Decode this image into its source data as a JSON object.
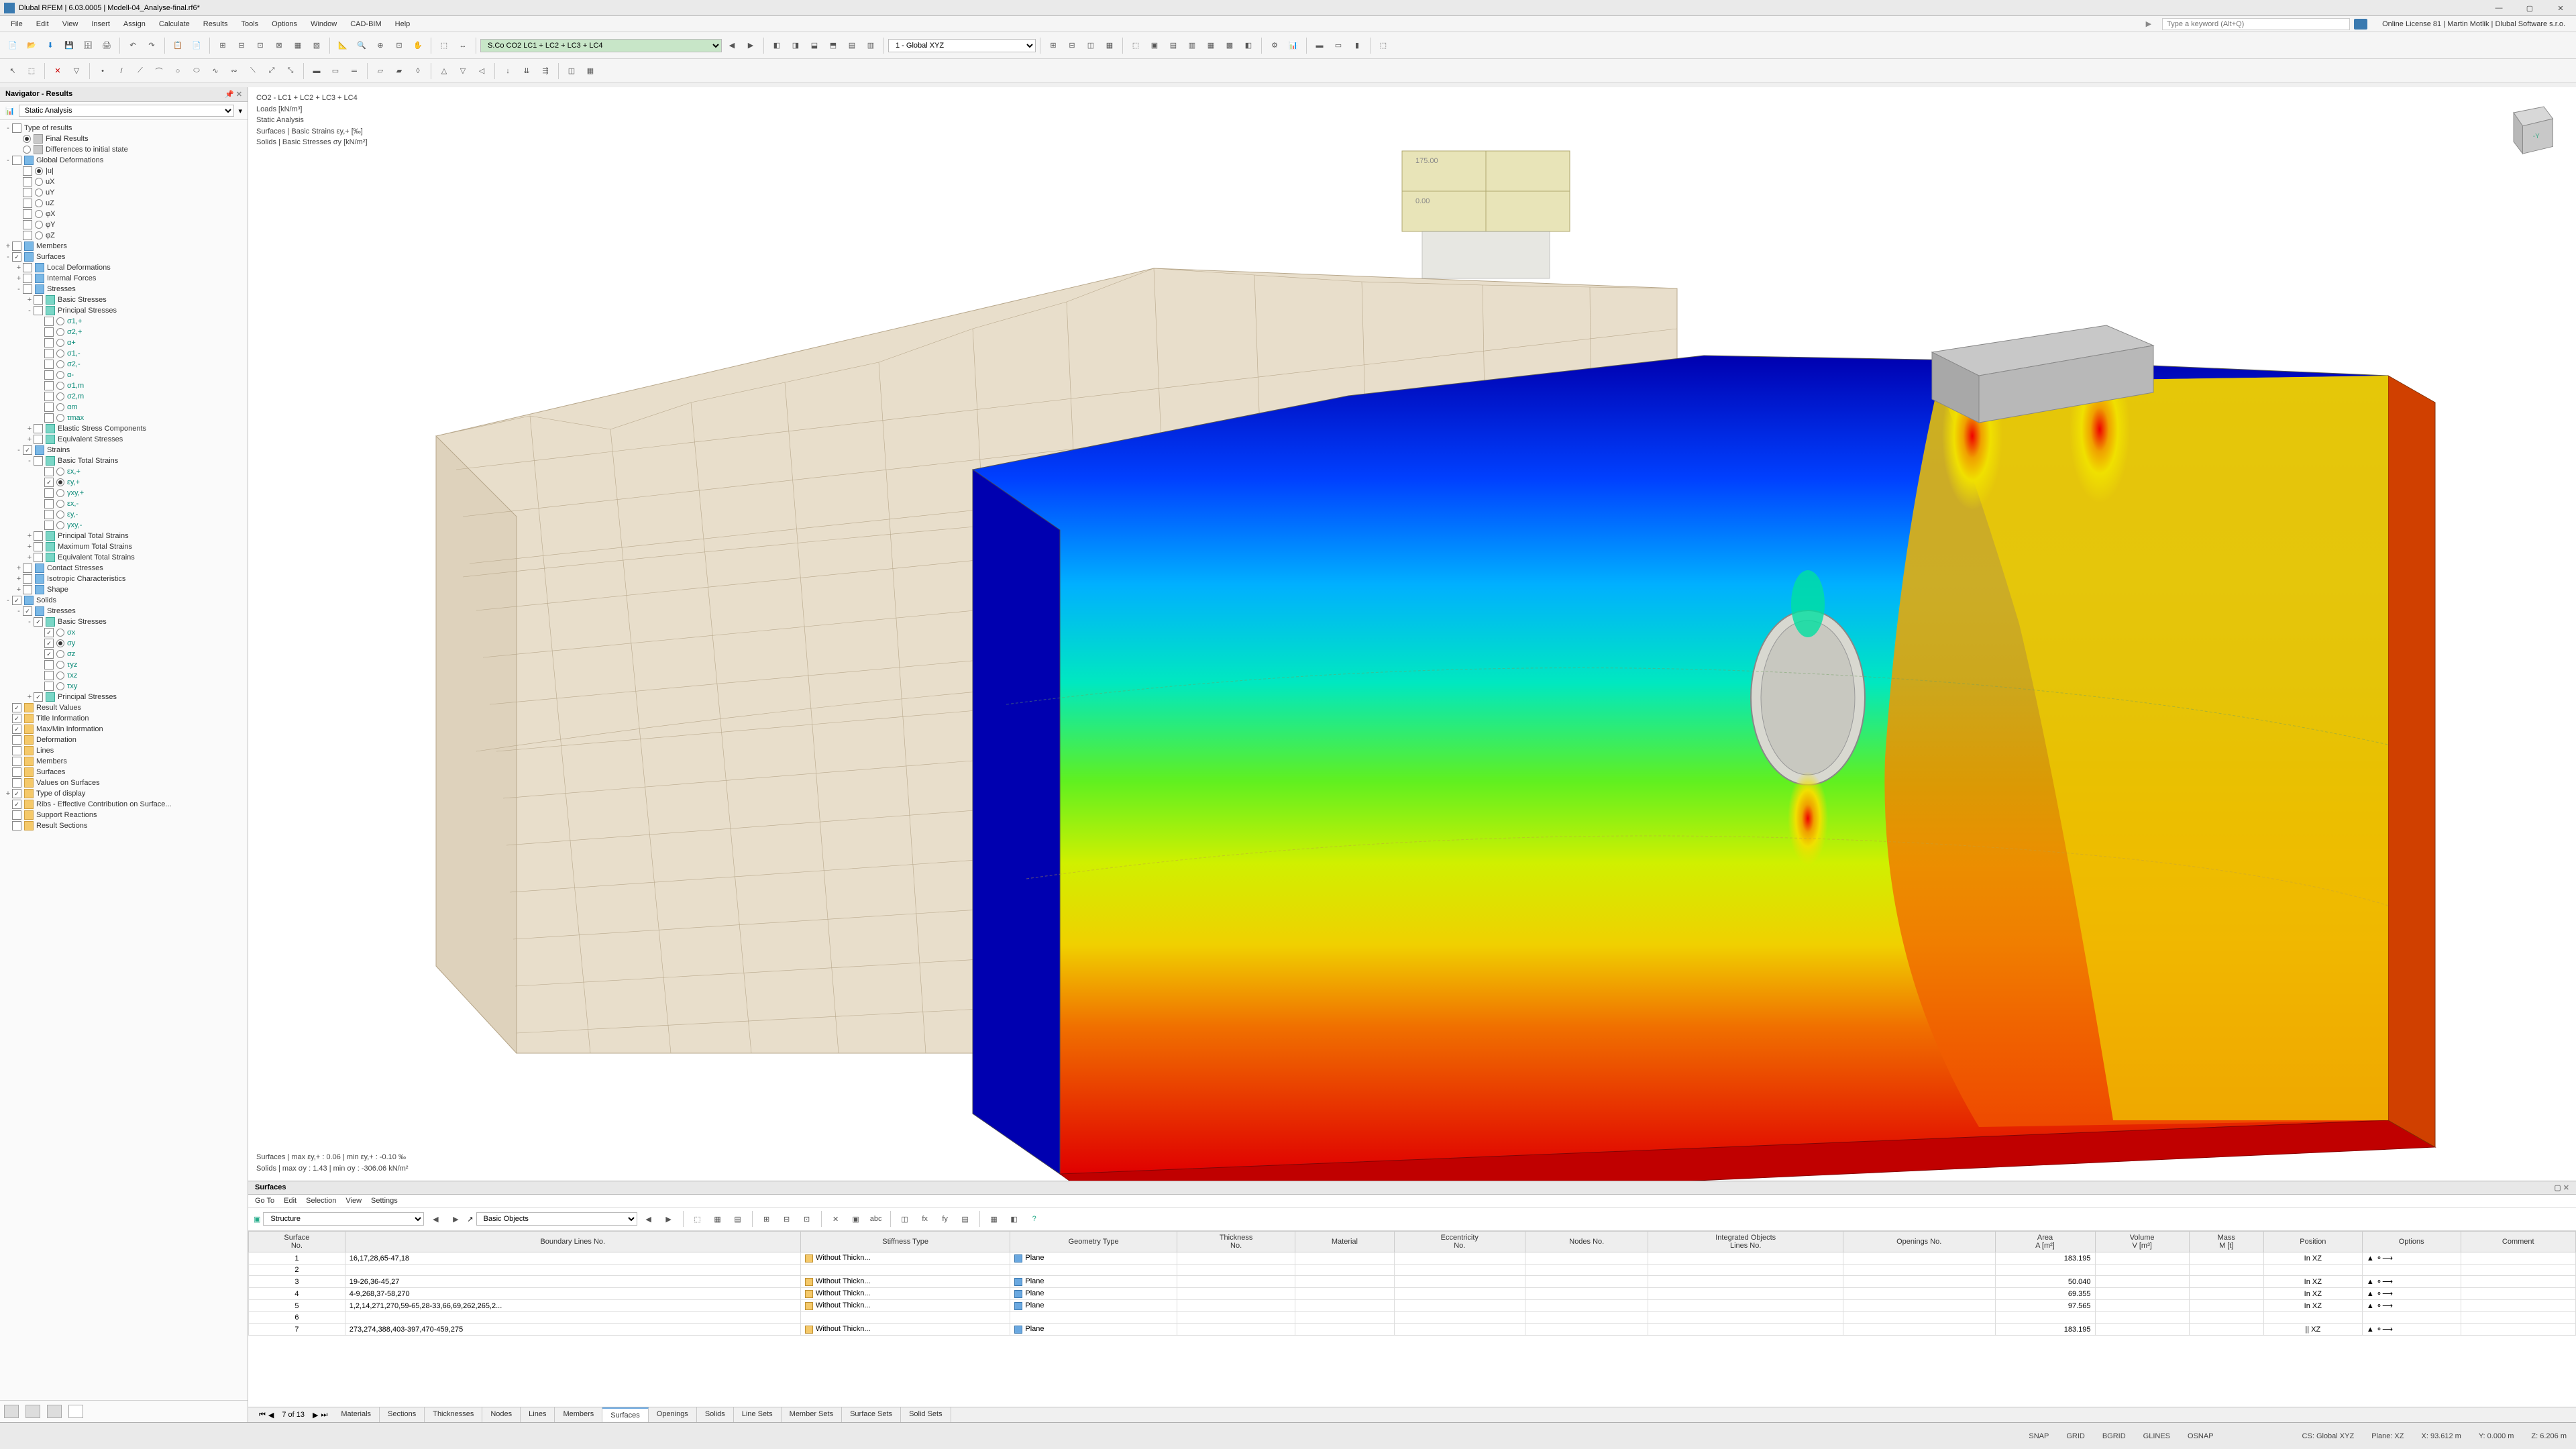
{
  "app": {
    "title": "Dlubal RFEM | 6.03.0005 | Modell-04_Analyse-final.rf6*"
  },
  "menu": [
    "File",
    "Edit",
    "View",
    "Insert",
    "Assign",
    "Calculate",
    "Results",
    "Tools",
    "Options",
    "Window",
    "CAD-BIM",
    "Help"
  ],
  "search_placeholder": "Type a keyword (Alt+Q)",
  "license": "Online License 81 | Martin Motlik | Dlubal Software s.r.o.",
  "toolbar2": {
    "load_label": "S.Co  CO2    LC1 + LC2 + LC3 + LC4",
    "coord_label": "1 - Global XYZ"
  },
  "navigator": {
    "title": "Navigator - Results",
    "analysis_dd": "Static Analysis"
  },
  "tree": [
    {
      "ind": 0,
      "exp": "-",
      "chk": "",
      "ico": "",
      "lbl": "Type of results",
      "cls": ""
    },
    {
      "ind": 1,
      "rad": "sel",
      "ico": "ico-gray",
      "lbl": "Final Results"
    },
    {
      "ind": 1,
      "rad": "",
      "ico": "ico-gray",
      "lbl": "Differences to initial state"
    },
    {
      "ind": 0,
      "exp": "-",
      "chk": "",
      "ico": "ico-blue",
      "lbl": "Global Deformations"
    },
    {
      "ind": 1,
      "rad": "sel",
      "chk": "",
      "lbl": "|u|"
    },
    {
      "ind": 1,
      "rad": "",
      "chk": "",
      "lbl": "uX"
    },
    {
      "ind": 1,
      "rad": "",
      "chk": "",
      "lbl": "uY"
    },
    {
      "ind": 1,
      "rad": "",
      "chk": "",
      "lbl": "uZ"
    },
    {
      "ind": 1,
      "rad": "",
      "chk": "",
      "lbl": "φX"
    },
    {
      "ind": 1,
      "rad": "",
      "chk": "",
      "lbl": "φY"
    },
    {
      "ind": 1,
      "rad": "",
      "chk": "",
      "lbl": "φZ"
    },
    {
      "ind": 0,
      "exp": "+",
      "chk": "",
      "ico": "ico-blue",
      "lbl": "Members"
    },
    {
      "ind": 0,
      "exp": "-",
      "chk": "checked",
      "ico": "ico-blue",
      "lbl": "Surfaces"
    },
    {
      "ind": 1,
      "exp": "+",
      "chk": "",
      "ico": "ico-blue",
      "lbl": "Local Deformations"
    },
    {
      "ind": 1,
      "exp": "+",
      "chk": "",
      "ico": "ico-blue",
      "lbl": "Internal Forces"
    },
    {
      "ind": 1,
      "exp": "-",
      "chk": "",
      "ico": "ico-blue",
      "lbl": "Stresses"
    },
    {
      "ind": 2,
      "exp": "+",
      "chk": "",
      "ico": "ico-teal",
      "lbl": "Basic Stresses"
    },
    {
      "ind": 2,
      "exp": "-",
      "chk": "",
      "ico": "ico-teal",
      "lbl": "Principal Stresses"
    },
    {
      "ind": 3,
      "rad": "",
      "chk": "",
      "lbl": "σ1,+",
      "cls": "lbl-teal"
    },
    {
      "ind": 3,
      "rad": "",
      "chk": "",
      "lbl": "σ2,+",
      "cls": "lbl-teal"
    },
    {
      "ind": 3,
      "rad": "",
      "chk": "",
      "lbl": "α+",
      "cls": "lbl-teal"
    },
    {
      "ind": 3,
      "rad": "",
      "chk": "",
      "lbl": "σ1,-",
      "cls": "lbl-teal"
    },
    {
      "ind": 3,
      "rad": "",
      "chk": "",
      "lbl": "σ2,-",
      "cls": "lbl-teal"
    },
    {
      "ind": 3,
      "rad": "",
      "chk": "",
      "lbl": "α-",
      "cls": "lbl-teal"
    },
    {
      "ind": 3,
      "rad": "",
      "chk": "",
      "lbl": "σ1,m",
      "cls": "lbl-teal"
    },
    {
      "ind": 3,
      "rad": "",
      "chk": "",
      "lbl": "σ2,m",
      "cls": "lbl-teal"
    },
    {
      "ind": 3,
      "rad": "",
      "chk": "",
      "lbl": "αm",
      "cls": "lbl-teal"
    },
    {
      "ind": 3,
      "rad": "",
      "chk": "",
      "lbl": "τmax",
      "cls": "lbl-teal"
    },
    {
      "ind": 2,
      "exp": "+",
      "chk": "",
      "ico": "ico-teal",
      "lbl": "Elastic Stress Components"
    },
    {
      "ind": 2,
      "exp": "+",
      "chk": "",
      "ico": "ico-teal",
      "lbl": "Equivalent Stresses"
    },
    {
      "ind": 1,
      "exp": "-",
      "chk": "checked",
      "ico": "ico-blue",
      "lbl": "Strains"
    },
    {
      "ind": 2,
      "exp": "-",
      "chk": "",
      "ico": "ico-teal",
      "lbl": "Basic Total Strains"
    },
    {
      "ind": 3,
      "rad": "",
      "chk": "",
      "lbl": "εx,+",
      "cls": "lbl-teal"
    },
    {
      "ind": 3,
      "rad": "sel",
      "chk": "checked",
      "lbl": "εy,+",
      "cls": "lbl-teal"
    },
    {
      "ind": 3,
      "rad": "",
      "chk": "",
      "lbl": "γxy,+",
      "cls": "lbl-teal"
    },
    {
      "ind": 3,
      "rad": "",
      "chk": "",
      "lbl": "εx,-",
      "cls": "lbl-teal"
    },
    {
      "ind": 3,
      "rad": "",
      "chk": "",
      "lbl": "εy,-",
      "cls": "lbl-teal"
    },
    {
      "ind": 3,
      "rad": "",
      "chk": "",
      "lbl": "γxy,-",
      "cls": "lbl-teal"
    },
    {
      "ind": 2,
      "exp": "+",
      "chk": "",
      "ico": "ico-teal",
      "lbl": "Principal Total Strains"
    },
    {
      "ind": 2,
      "exp": "+",
      "chk": "",
      "ico": "ico-teal",
      "lbl": "Maximum Total Strains"
    },
    {
      "ind": 2,
      "exp": "+",
      "chk": "",
      "ico": "ico-teal",
      "lbl": "Equivalent Total Strains"
    },
    {
      "ind": 1,
      "exp": "+",
      "chk": "",
      "ico": "ico-blue",
      "lbl": "Contact Stresses"
    },
    {
      "ind": 1,
      "exp": "+",
      "chk": "",
      "ico": "ico-blue",
      "lbl": "Isotropic Characteristics"
    },
    {
      "ind": 1,
      "exp": "+",
      "chk": "",
      "ico": "ico-blue",
      "lbl": "Shape"
    },
    {
      "ind": 0,
      "exp": "-",
      "chk": "checked",
      "ico": "ico-blue",
      "lbl": "Solids"
    },
    {
      "ind": 1,
      "exp": "-",
      "chk": "checked",
      "ico": "ico-blue",
      "lbl": "Stresses"
    },
    {
      "ind": 2,
      "exp": "-",
      "chk": "checked",
      "ico": "ico-teal",
      "lbl": "Basic Stresses"
    },
    {
      "ind": 3,
      "rad": "",
      "chk": "checked",
      "lbl": "σx",
      "cls": "lbl-teal"
    },
    {
      "ind": 3,
      "rad": "sel",
      "chk": "checked",
      "lbl": "σy",
      "cls": "lbl-teal"
    },
    {
      "ind": 3,
      "rad": "",
      "chk": "checked",
      "lbl": "σz",
      "cls": "lbl-teal"
    },
    {
      "ind": 3,
      "rad": "",
      "chk": "",
      "lbl": "τyz",
      "cls": "lbl-teal"
    },
    {
      "ind": 3,
      "rad": "",
      "chk": "",
      "lbl": "τxz",
      "cls": "lbl-teal"
    },
    {
      "ind": 3,
      "rad": "",
      "chk": "",
      "lbl": "τxy",
      "cls": "lbl-teal"
    },
    {
      "ind": 2,
      "exp": "+",
      "chk": "checked",
      "ico": "ico-teal",
      "lbl": "Principal Stresses"
    },
    {
      "ind": 0,
      "chk": "checked",
      "ico": "ico-orange",
      "lbl": "Result Values"
    },
    {
      "ind": 0,
      "chk": "checked",
      "ico": "ico-orange",
      "lbl": "Title Information"
    },
    {
      "ind": 0,
      "chk": "checked",
      "ico": "ico-orange",
      "lbl": "Max/Min Information"
    },
    {
      "ind": 0,
      "chk": "",
      "ico": "ico-orange",
      "lbl": "Deformation"
    },
    {
      "ind": 0,
      "chk": "",
      "ico": "ico-orange",
      "lbl": "Lines"
    },
    {
      "ind": 0,
      "chk": "",
      "ico": "ico-orange",
      "lbl": "Members"
    },
    {
      "ind": 0,
      "chk": "",
      "ico": "ico-orange",
      "lbl": "Surfaces"
    },
    {
      "ind": 0,
      "chk": "",
      "ico": "ico-orange",
      "lbl": "Values on Surfaces"
    },
    {
      "ind": 0,
      "exp": "+",
      "chk": "checked",
      "ico": "ico-orange",
      "lbl": "Type of display"
    },
    {
      "ind": 0,
      "chk": "checked",
      "ico": "ico-orange",
      "lbl": "Ribs - Effective Contribution on Surface..."
    },
    {
      "ind": 0,
      "chk": "",
      "ico": "ico-orange",
      "lbl": "Support Reactions"
    },
    {
      "ind": 0,
      "chk": "",
      "ico": "ico-orange",
      "lbl": "Result Sections"
    }
  ],
  "viewport": {
    "line1": "CO2 - LC1 + LC2 + LC3 + LC4",
    "line2": "Loads [kN/m³]",
    "line3": "Static Analysis",
    "line4": "Surfaces | Basic Strains εy,+ [‰]",
    "line5": "Solids | Basic Stresses σy [kN/m²]",
    "bottom1": "Surfaces | max εy,+ : 0.06 | min εy,+ : -0.10 ‰",
    "bottom2": "Solids | max σy : 1.43 | min σy : -306.06 kN/m²"
  },
  "bottom": {
    "title": "Surfaces",
    "menu": [
      "Go To",
      "Edit",
      "Selection",
      "View",
      "Settings"
    ],
    "structure_dd": "Structure",
    "basic_dd": "Basic Objects",
    "headers": [
      "Surface\nNo.",
      "Boundary Lines No.",
      "Stiffness Type",
      "Geometry Type",
      "Thickness\nNo.",
      "Material",
      "Eccentricity\nNo.",
      "Nodes No.",
      "Integrated Objects\nLines No.",
      "Openings No.",
      "Area\nA [m²]",
      "Volume\nV [m³]",
      "Mass\nM [t]",
      "Position",
      "Options",
      "Comment"
    ],
    "rows": [
      {
        "no": "1",
        "bl": "16,17,28,65-47,18",
        "st": "Without Thickn...",
        "gt": "Plane",
        "area": "183.195",
        "pos": "In XZ",
        "opt": "▲  ⚬⟶"
      },
      {
        "no": "2",
        "bl": "",
        "st": "",
        "gt": "",
        "area": "",
        "pos": "",
        "opt": ""
      },
      {
        "no": "3",
        "bl": "19-26,36-45,27",
        "st": "Without Thickn...",
        "gt": "Plane",
        "area": "50.040",
        "pos": "In XZ",
        "opt": "▲  ⚬⟶"
      },
      {
        "no": "4",
        "bl": "4-9,268,37-58,270",
        "st": "Without Thickn...",
        "gt": "Plane",
        "area": "69.355",
        "pos": "In XZ",
        "opt": "▲  ⚬⟶"
      },
      {
        "no": "5",
        "bl": "1,2,14,271,270,59-65,28-33,66,69,262,265,2...",
        "st": "Without Thickn...",
        "gt": "Plane",
        "area": "97.565",
        "pos": "In XZ",
        "opt": "▲  ⚬⟶"
      },
      {
        "no": "6",
        "bl": "",
        "st": "",
        "gt": "",
        "area": "",
        "pos": "",
        "opt": ""
      },
      {
        "no": "7",
        "bl": "273,274,388,403-397,470-459,275",
        "st": "Without Thickn...",
        "gt": "Plane",
        "area": "183.195",
        "pos": "|| XZ",
        "opt": "▲  ⚬⟶"
      }
    ],
    "page_info": "7 of 13",
    "tabs": [
      "Materials",
      "Sections",
      "Thicknesses",
      "Nodes",
      "Lines",
      "Members",
      "Surfaces",
      "Openings",
      "Solids",
      "Line Sets",
      "Member Sets",
      "Surface Sets",
      "Solid Sets"
    ],
    "active_tab": 6
  },
  "status": {
    "left": [
      "SNAP",
      "GRID",
      "BGRID",
      "GLINES",
      "OSNAP"
    ],
    "right": [
      "CS: Global XYZ",
      "Plane: XZ",
      "X: 93.612 m",
      "Y: 0.000 m",
      "Z: 6.206 m"
    ]
  },
  "colors": {
    "mesh": "#d8ccb4",
    "contour": [
      "#0000b0",
      "#0040ff",
      "#0090ff",
      "#00d0f0",
      "#00f090",
      "#60f020",
      "#c0f000",
      "#f0e000",
      "#f0a000",
      "#f05000",
      "#e00000"
    ]
  }
}
